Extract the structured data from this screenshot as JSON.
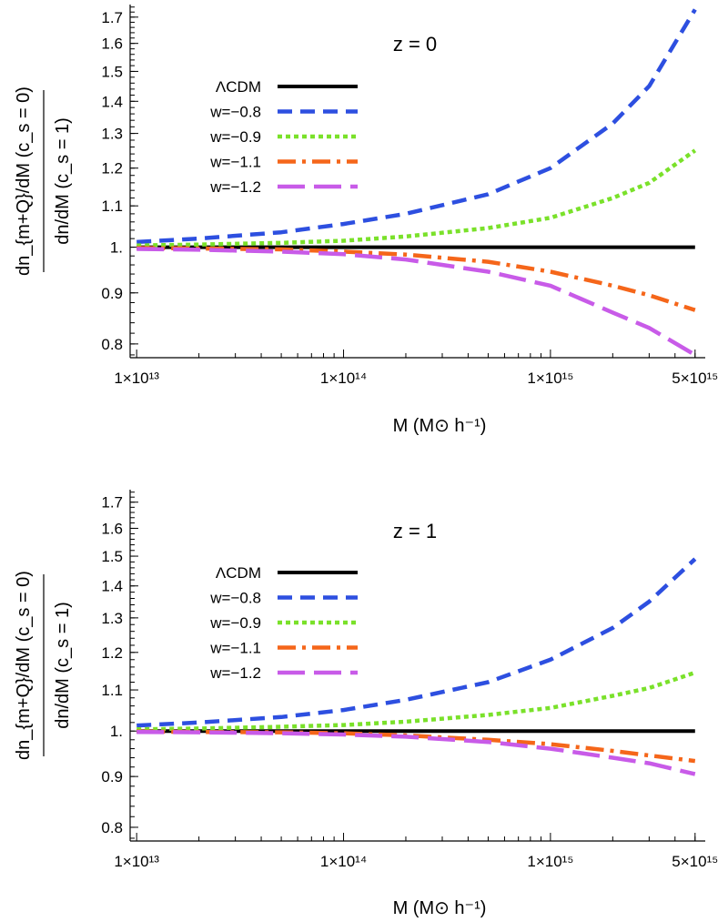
{
  "chart_data": [
    {
      "type": "line",
      "panel_label": "z = 0",
      "xlabel": "M (M⊙ h⁻¹)",
      "ylabel_num": "dn_{m+Q}/dM (c_s = 0)",
      "ylabel_den": "dn/dM (c_s = 1)",
      "x_scale": "log",
      "y_scale": "log",
      "xlim": [
        9300000000000.0,
        5600000000000000.0
      ],
      "ylim": [
        0.775,
        1.75
      ],
      "x_ticks": [
        10000000000000.0,
        100000000000000.0,
        1000000000000000.0,
        5000000000000000.0
      ],
      "x_tick_labels": [
        "1×10¹³",
        "1×10¹⁴",
        "1×10¹⁵",
        "5×10¹⁵"
      ],
      "y_ticks": [
        0.8,
        0.9,
        1.0,
        1.1,
        1.2,
        1.3,
        1.4,
        1.5,
        1.6,
        1.7
      ],
      "y_tick_labels": [
        "0.8",
        "0.9",
        "1.",
        "1.1",
        "1.2",
        "1.3",
        "1.4",
        "1.5",
        "1.6",
        "1.7"
      ],
      "legend_position": "top-left",
      "x": [
        10000000000000.0,
        20000000000000.0,
        50000000000000.0,
        100000000000000.0,
        200000000000000.0,
        500000000000000.0,
        1000000000000000.0,
        2000000000000000.0,
        3000000000000000.0,
        5000000000000000.0
      ],
      "series": [
        {
          "name": "ΛCDM",
          "color": "#000000",
          "dash": "solid",
          "values": [
            1.0,
            1.0,
            1.0,
            1.0,
            1.0,
            1.0,
            1.0,
            1.0,
            1.0,
            1.0
          ]
        },
        {
          "name": "w=−0.8",
          "color": "#2d4fe0",
          "dash": "dashed",
          "values": [
            1.012,
            1.02,
            1.035,
            1.055,
            1.08,
            1.13,
            1.2,
            1.33,
            1.45,
            1.73
          ]
        },
        {
          "name": "w=−0.9",
          "color": "#7ae12a",
          "dash": "dotted",
          "values": [
            1.004,
            1.006,
            1.01,
            1.015,
            1.025,
            1.045,
            1.07,
            1.12,
            1.16,
            1.25
          ]
        },
        {
          "name": "w=−1.1",
          "color": "#f5661a",
          "dash": "dashdot",
          "values": [
            0.998,
            0.997,
            0.995,
            0.99,
            0.983,
            0.967,
            0.945,
            0.915,
            0.895,
            0.865
          ]
        },
        {
          "name": "w=−1.2",
          "color": "#c85be8",
          "dash": "longdash",
          "values": [
            0.996,
            0.994,
            0.99,
            0.984,
            0.972,
            0.945,
            0.915,
            0.86,
            0.83,
            0.78
          ]
        }
      ]
    },
    {
      "type": "line",
      "panel_label": "z = 1",
      "xlabel": "M (M⊙ h⁻¹)",
      "ylabel_num": "dn_{m+Q}/dM (c_s = 0)",
      "ylabel_den": "dn/dM (c_s = 1)",
      "x_scale": "log",
      "y_scale": "log",
      "xlim": [
        9300000000000.0,
        5600000000000000.0
      ],
      "ylim": [
        0.775,
        1.75
      ],
      "x_ticks": [
        10000000000000.0,
        100000000000000.0,
        1000000000000000.0,
        5000000000000000.0
      ],
      "x_tick_labels": [
        "1×10¹³",
        "1×10¹⁴",
        "1×10¹⁵",
        "5×10¹⁵"
      ],
      "y_ticks": [
        0.8,
        0.9,
        1.0,
        1.1,
        1.2,
        1.3,
        1.4,
        1.5,
        1.6,
        1.7
      ],
      "y_tick_labels": [
        "0.8",
        "0.9",
        "1.",
        "1.1",
        "1.2",
        "1.3",
        "1.4",
        "1.5",
        "1.6",
        "1.7"
      ],
      "legend_position": "top-left",
      "x": [
        10000000000000.0,
        20000000000000.0,
        50000000000000.0,
        100000000000000.0,
        200000000000000.0,
        500000000000000.0,
        1000000000000000.0,
        2000000000000000.0,
        3000000000000000.0,
        5000000000000000.0
      ],
      "series": [
        {
          "name": "ΛCDM",
          "color": "#000000",
          "dash": "solid",
          "values": [
            1.0,
            1.0,
            1.0,
            1.0,
            1.0,
            1.0,
            1.0,
            1.0,
            1.0,
            1.0
          ]
        },
        {
          "name": "w=−0.8",
          "color": "#2d4fe0",
          "dash": "dashed",
          "values": [
            1.013,
            1.02,
            1.033,
            1.05,
            1.075,
            1.12,
            1.18,
            1.27,
            1.35,
            1.49
          ]
        },
        {
          "name": "w=−0.9",
          "color": "#7ae12a",
          "dash": "dotted",
          "values": [
            1.004,
            1.006,
            1.01,
            1.014,
            1.022,
            1.038,
            1.055,
            1.085,
            1.105,
            1.145
          ]
        },
        {
          "name": "w=−1.1",
          "color": "#f5661a",
          "dash": "dashdot",
          "values": [
            0.999,
            0.998,
            0.997,
            0.995,
            0.99,
            0.98,
            0.97,
            0.955,
            0.945,
            0.933
          ]
        },
        {
          "name": "w=−1.2",
          "color": "#c85be8",
          "dash": "longdash",
          "values": [
            0.998,
            0.997,
            0.995,
            0.992,
            0.987,
            0.975,
            0.96,
            0.94,
            0.928,
            0.905
          ]
        }
      ]
    }
  ]
}
